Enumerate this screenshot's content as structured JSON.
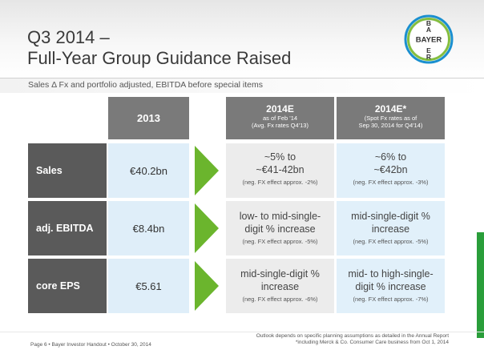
{
  "slide": {
    "title_line1": "Q3 2014 –",
    "title_line2": "Full-Year Group Guidance Raised",
    "subtitle": "Sales Δ Fx and portfolio adjusted, EBITDA before special items",
    "logo_text": "BAYER"
  },
  "table": {
    "headers": {
      "col_2013": "2013",
      "col_2014e_a_title": "2014E",
      "col_2014e_a_sub1": "as of Feb '14",
      "col_2014e_a_sub2": "(Avg. Fx rates Q4'13)",
      "col_2014e_b_title": "2014E*",
      "col_2014e_b_sub1": "(Spot Fx rates as of",
      "col_2014e_b_sub2": "Sep 30, 2014 for Q4'14)"
    },
    "rows": [
      {
        "label": "Sales",
        "v2013": "€40.2bn",
        "feb_line1": "~5% to",
        "feb_line2": "~€41-42bn",
        "feb_note": "(neg. FX effect approx. -2%)",
        "spot_line1": "~6% to",
        "spot_line2": "~€42bn",
        "spot_note": "(neg. FX effect approx. -3%)"
      },
      {
        "label": "adj. EBITDA",
        "v2013": "€8.4bn",
        "feb_line1": "low- to mid-single-",
        "feb_line2": "digit % increase",
        "feb_note": "(neg. FX effect approx. -5%)",
        "spot_line1": "mid-single-digit %",
        "spot_line2": "increase",
        "spot_note": "(neg. FX effect approx. -5%)"
      },
      {
        "label": "core EPS",
        "v2013": "€5.61",
        "feb_line1": "mid-single-digit %",
        "feb_line2": "increase",
        "feb_note": "(neg. FX effect approx. -6%)",
        "spot_line1": "mid- to high-single-",
        "spot_line2": "digit % increase",
        "spot_note": "(neg. FX effect approx. -7%)"
      }
    ]
  },
  "footer": {
    "left": "Page 6 • Bayer Investor Handout • October 30, 2014",
    "right_line1": "Outlook depends on specific planning assumptions as detailed in the Annual Report",
    "right_line2": "*including Merck & Co. Consumer Care business from Oct 1, 2014"
  },
  "colors": {
    "header_grey": "#7a7a7a",
    "label_dark": "#5a5a5a",
    "cell_blue": "#e1f0fa",
    "cell_grey": "#ececec",
    "arrow_green": "#6bb52d",
    "logo_blue": "#1a8fcf",
    "logo_green": "#84be3f"
  }
}
